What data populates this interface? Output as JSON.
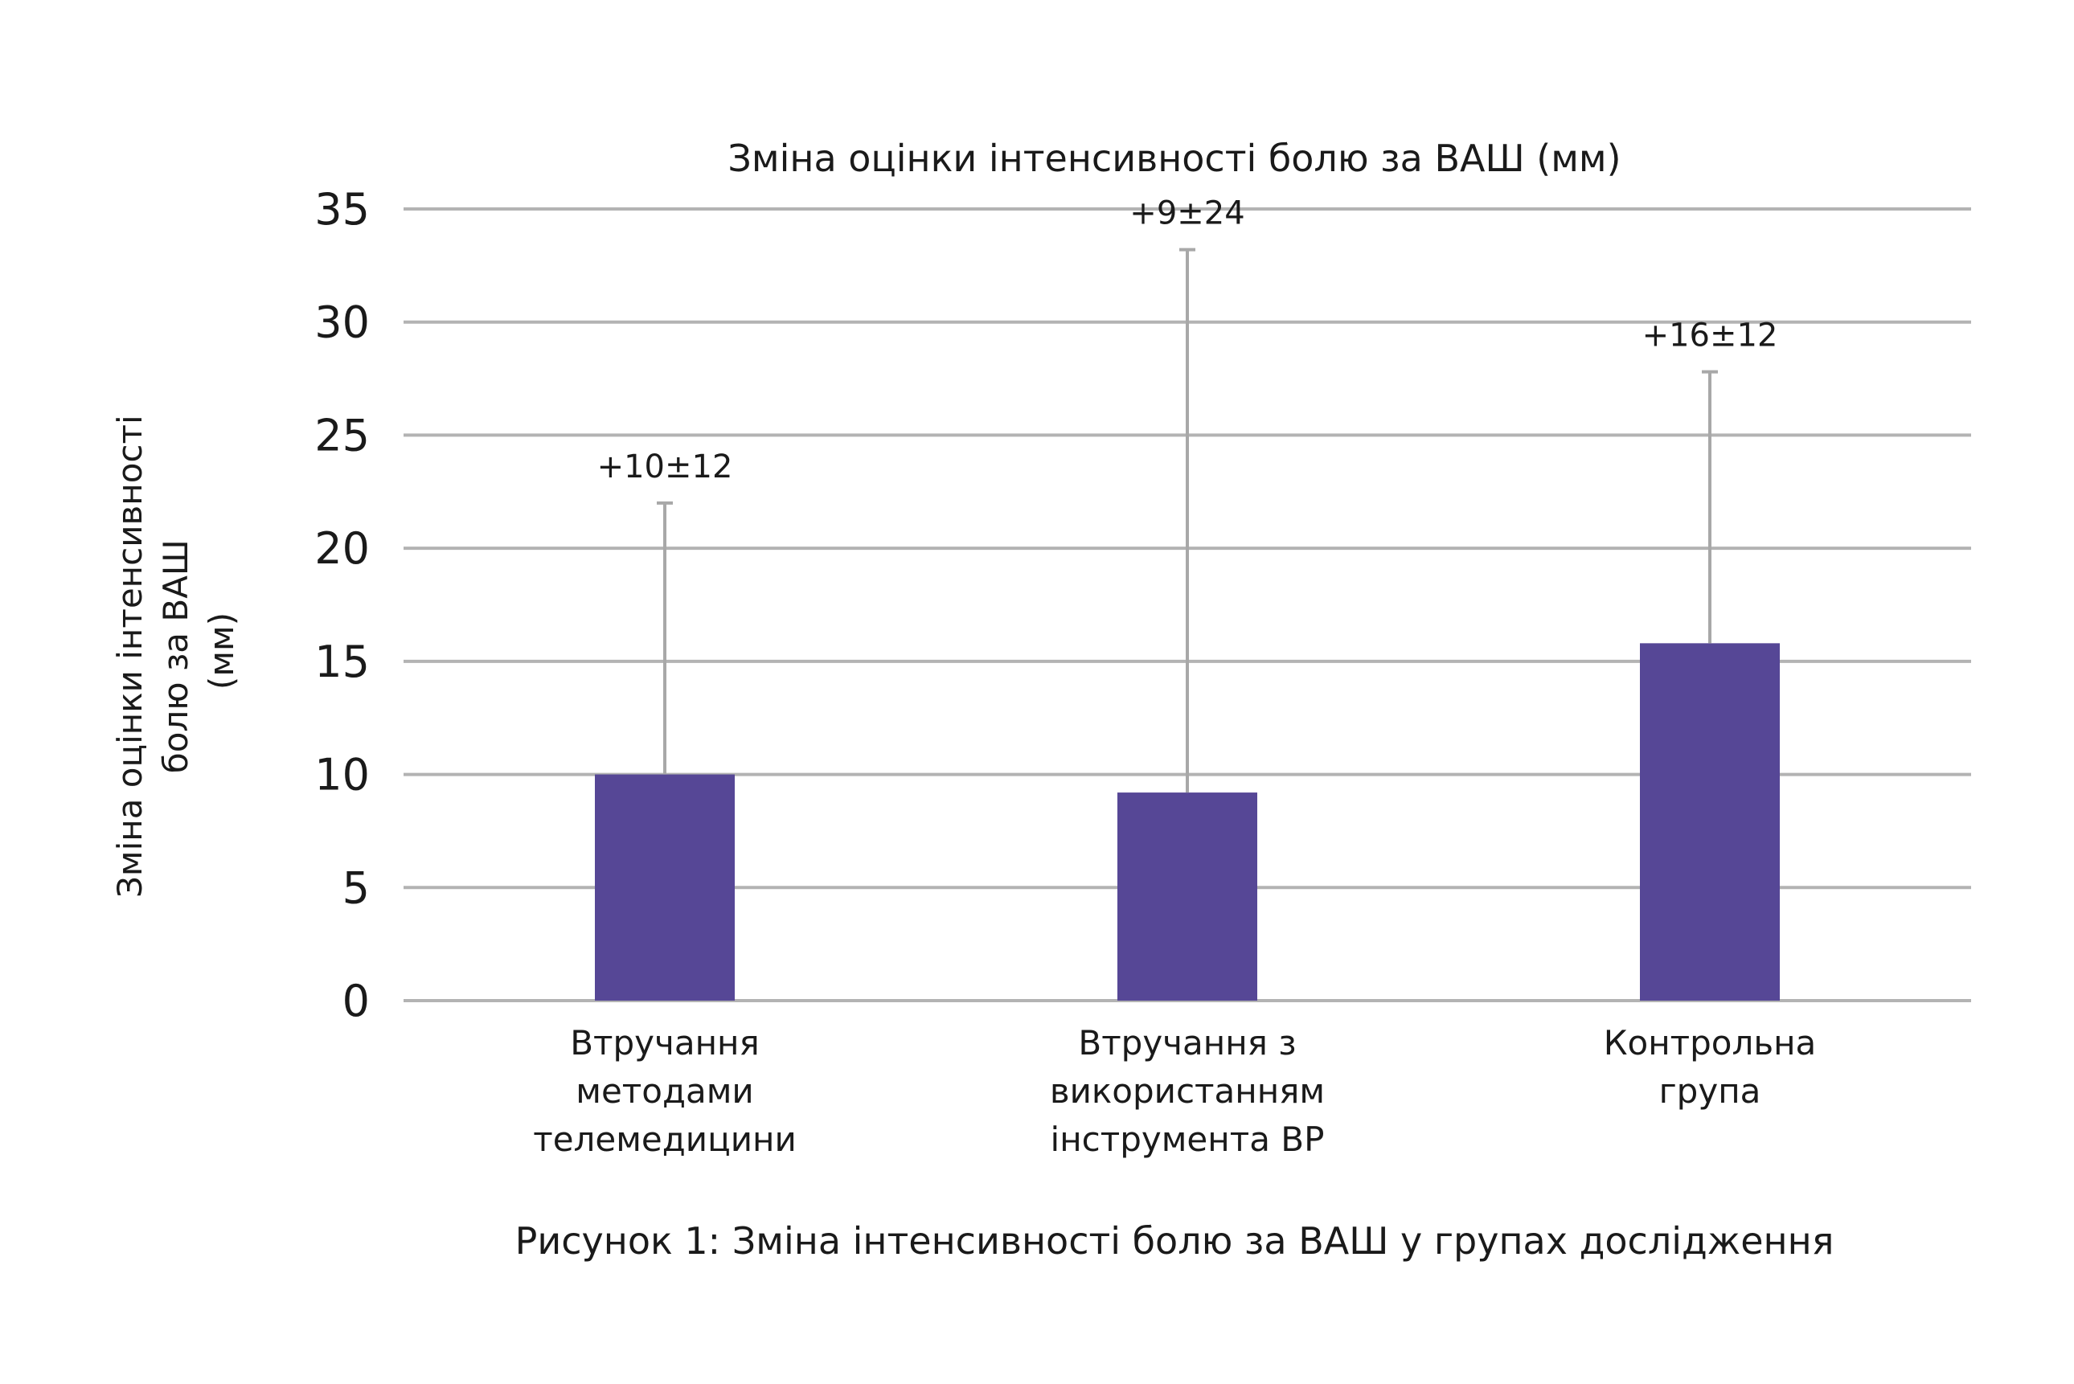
{
  "chart_data": {
    "type": "bar",
    "title": "Зміна оцінки інтенсивності болю за ВАШ (мм)",
    "xlabel": "",
    "ylabel": [
      "Зміна оцінки інтенсивності",
      "болю за ВАШ",
      "(мм)"
    ],
    "ylim": [
      0,
      35
    ],
    "yticks": [
      0,
      5,
      10,
      15,
      20,
      25,
      30,
      35
    ],
    "grid": true,
    "categories": [
      [
        "Втручання",
        "методами",
        "телемедицини"
      ],
      [
        "Втручання з",
        "використанням",
        "інструмента ВР"
      ],
      [
        "Контрольна",
        "група"
      ]
    ],
    "values": [
      10,
      9.2,
      15.8
    ],
    "error_upper": [
      12,
      24,
      12
    ],
    "data_labels": [
      "+10±12",
      "+9±24",
      "+16±12"
    ],
    "bar_color": "#564796",
    "error_color": "#a8a8a8",
    "grid_color": "#b3b3b3"
  },
  "caption": "Рисунок 1: Зміна інтенсивності болю за ВАШ у групах дослідження"
}
